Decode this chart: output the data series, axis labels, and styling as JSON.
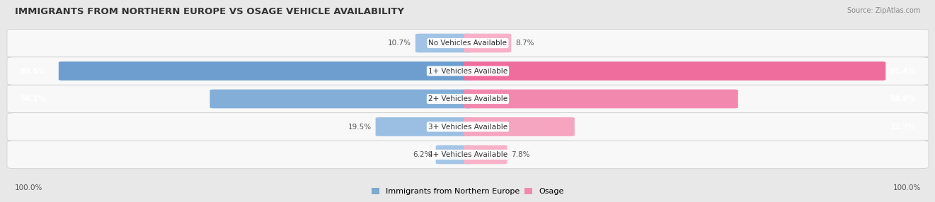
{
  "title": "IMMIGRANTS FROM NORTHERN EUROPE VS OSAGE VEHICLE AVAILABILITY",
  "source": "Source: ZipAtlas.com",
  "categories": [
    "No Vehicles Available",
    "1+ Vehicles Available",
    "2+ Vehicles Available",
    "3+ Vehicles Available",
    "4+ Vehicles Available"
  ],
  "left_values": [
    10.7,
    89.5,
    56.1,
    19.5,
    6.2
  ],
  "right_values": [
    8.7,
    91.4,
    58.8,
    22.7,
    7.8
  ],
  "left_color_low": "#a8c8e8",
  "left_color_high": "#6699cc",
  "right_color_low": "#f8b8cc",
  "right_color_high": "#ee6699",
  "left_label": "Immigrants from Northern Europe",
  "right_label": "Osage",
  "max_value": 100.0,
  "bg_color": "#e8e8e8",
  "row_bg": "#f8f8f8",
  "footer_label": "100.0%",
  "inside_threshold": 20
}
